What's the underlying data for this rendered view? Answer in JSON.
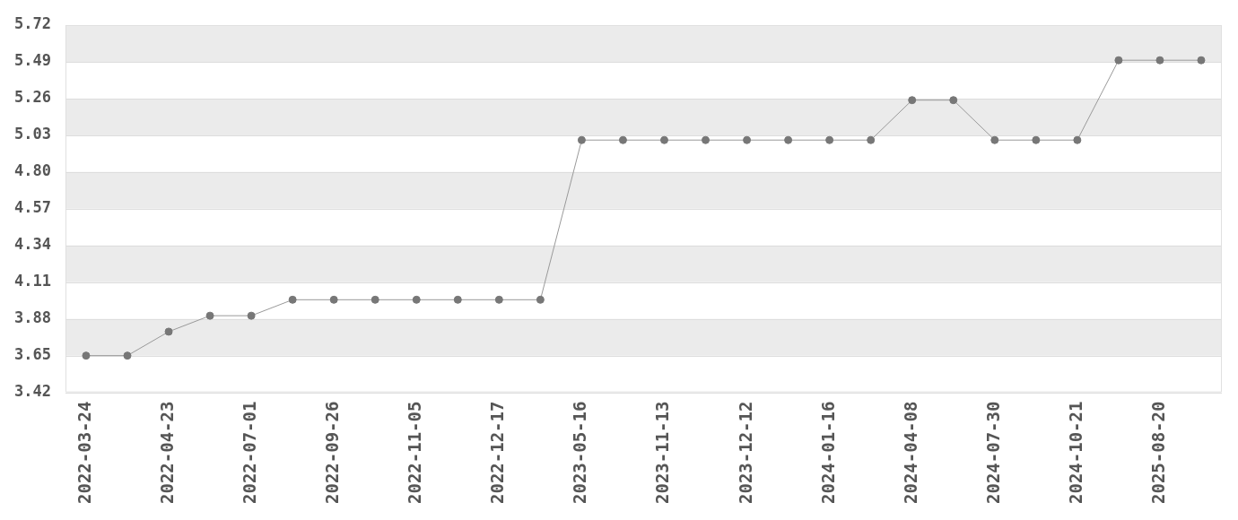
{
  "chart_data": {
    "type": "line",
    "categories": [
      "2022-03-24",
      null,
      "2022-04-23",
      null,
      "2022-07-01",
      null,
      "2022-09-26",
      null,
      "2022-11-05",
      null,
      "2022-12-17",
      null,
      "2023-05-16",
      null,
      "2023-11-13",
      null,
      "2023-12-12",
      null,
      "2024-01-16",
      null,
      "2024-04-08",
      null,
      "2024-07-30",
      null,
      "2024-10-21",
      null,
      "2025-08-20",
      null
    ],
    "series": [
      {
        "color": "#777777",
        "values": [
          3.65,
          3.65,
          3.8,
          3.9,
          3.9,
          4.0,
          4.0,
          4.0,
          4.0,
          4.0,
          4.0,
          4.0,
          5.0,
          5.0,
          5.0,
          5.0,
          5.0,
          5.0,
          5.0,
          5.0,
          5.25,
          5.25,
          5.0,
          5.0,
          5.0,
          5.5,
          5.5,
          5.5
        ]
      }
    ],
    "ylim": [
      3.42,
      5.72
    ],
    "yticks": [
      {
        "value": 3.42,
        "label": "3.42"
      },
      {
        "value": 3.65,
        "label": "3.65"
      },
      {
        "value": 3.88,
        "label": "3.88"
      },
      {
        "value": 4.11,
        "label": "4.11"
      },
      {
        "value": 4.34,
        "label": "4.34"
      },
      {
        "value": 4.57,
        "label": "4.57"
      },
      {
        "value": 4.8,
        "label": "4.80"
      },
      {
        "value": 5.03,
        "label": "5.03"
      },
      {
        "value": 5.26,
        "label": "5.26"
      },
      {
        "value": 5.49,
        "label": "5.49"
      },
      {
        "value": 5.72,
        "label": "5.72"
      }
    ],
    "grid": "y",
    "legend": false,
    "marker": "circle",
    "line_style": "solid"
  }
}
